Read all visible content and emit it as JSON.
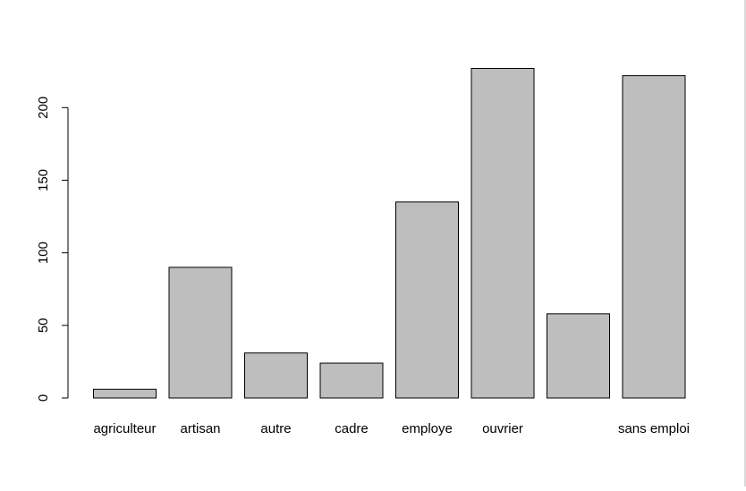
{
  "chart_data": {
    "type": "bar",
    "categories": [
      "agriculteur",
      "artisan",
      "autre",
      "cadre",
      "employe",
      "ouvrier",
      "",
      "sans emploi"
    ],
    "values": [
      6,
      90,
      31,
      24,
      135,
      227,
      58,
      222
    ],
    "ylim": [
      0,
      230
    ],
    "yticks": [
      0,
      50,
      100,
      150,
      200
    ],
    "title": "",
    "xlabel": "",
    "ylabel": "",
    "grid": false,
    "bar_fill": "#bebebe",
    "bar_stroke": "#000000"
  }
}
